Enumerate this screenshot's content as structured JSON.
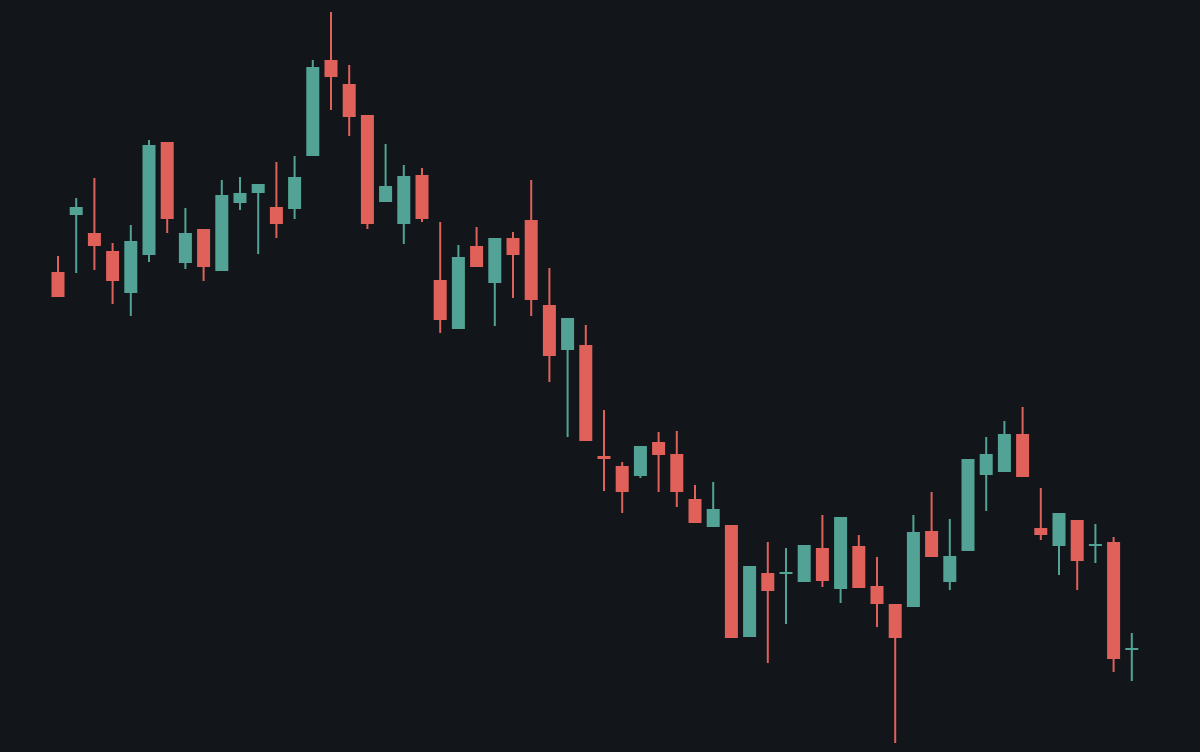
{
  "chart_data": {
    "type": "candlestick",
    "up_color": "#52a395",
    "down_color": "#e0605a",
    "background": "#12161b",
    "ylim": [
      0,
      752
    ],
    "open": [
      480,
      537,
      519,
      501,
      459,
      497,
      610,
      489,
      523,
      481,
      549,
      559,
      545,
      543,
      596,
      692,
      668,
      637,
      550,
      528,
      577,
      472,
      423,
      506,
      469,
      514,
      532,
      447,
      402,
      407,
      296,
      286,
      276,
      310,
      298,
      253,
      225,
      227,
      115,
      179,
      178,
      170,
      204,
      163,
      206,
      166,
      148,
      145,
      221,
      170,
      201,
      277,
      280,
      318,
      224,
      206,
      232,
      206,
      210,
      102
    ],
    "high": [
      496,
      554,
      574,
      509,
      527,
      612,
      610,
      544,
      523,
      572,
      575,
      568,
      590,
      596,
      692,
      740,
      687,
      637,
      608,
      587,
      584,
      530,
      507,
      525,
      514,
      520,
      572,
      484,
      434,
      427,
      342,
      290,
      306,
      320,
      321,
      267,
      270,
      227,
      186,
      210,
      204,
      207,
      237,
      235,
      217,
      195,
      148,
      237,
      260,
      233,
      293,
      315,
      331,
      345,
      264,
      239,
      232,
      228,
      215,
      119
    ],
    "low": [
      455,
      479,
      482,
      448,
      436,
      490,
      519,
      483,
      471,
      481,
      542,
      498,
      514,
      533,
      596,
      642,
      616,
      523,
      550,
      508,
      530,
      419,
      423,
      485,
      426,
      454,
      436,
      370,
      315,
      311,
      261,
      239,
      274,
      260,
      245,
      229,
      225,
      114,
      115,
      89,
      128,
      170,
      165,
      149,
      164,
      125,
      9,
      145,
      195,
      162,
      201,
      241,
      280,
      275,
      212,
      177,
      162,
      189,
      80,
      71
    ],
    "close": [
      455,
      545,
      506,
      471,
      511,
      607,
      533,
      519,
      485,
      557,
      559,
      568,
      528,
      575,
      685,
      675,
      635,
      528,
      566,
      576,
      533,
      432,
      495,
      485,
      514,
      497,
      452,
      396,
      434,
      311,
      293,
      260,
      306,
      297,
      260,
      229,
      243,
      114,
      186,
      161,
      180,
      207,
      171,
      235,
      164,
      148,
      114,
      220,
      195,
      196,
      293,
      298,
      318,
      275,
      217,
      239,
      191,
      208,
      93,
      104
    ]
  }
}
